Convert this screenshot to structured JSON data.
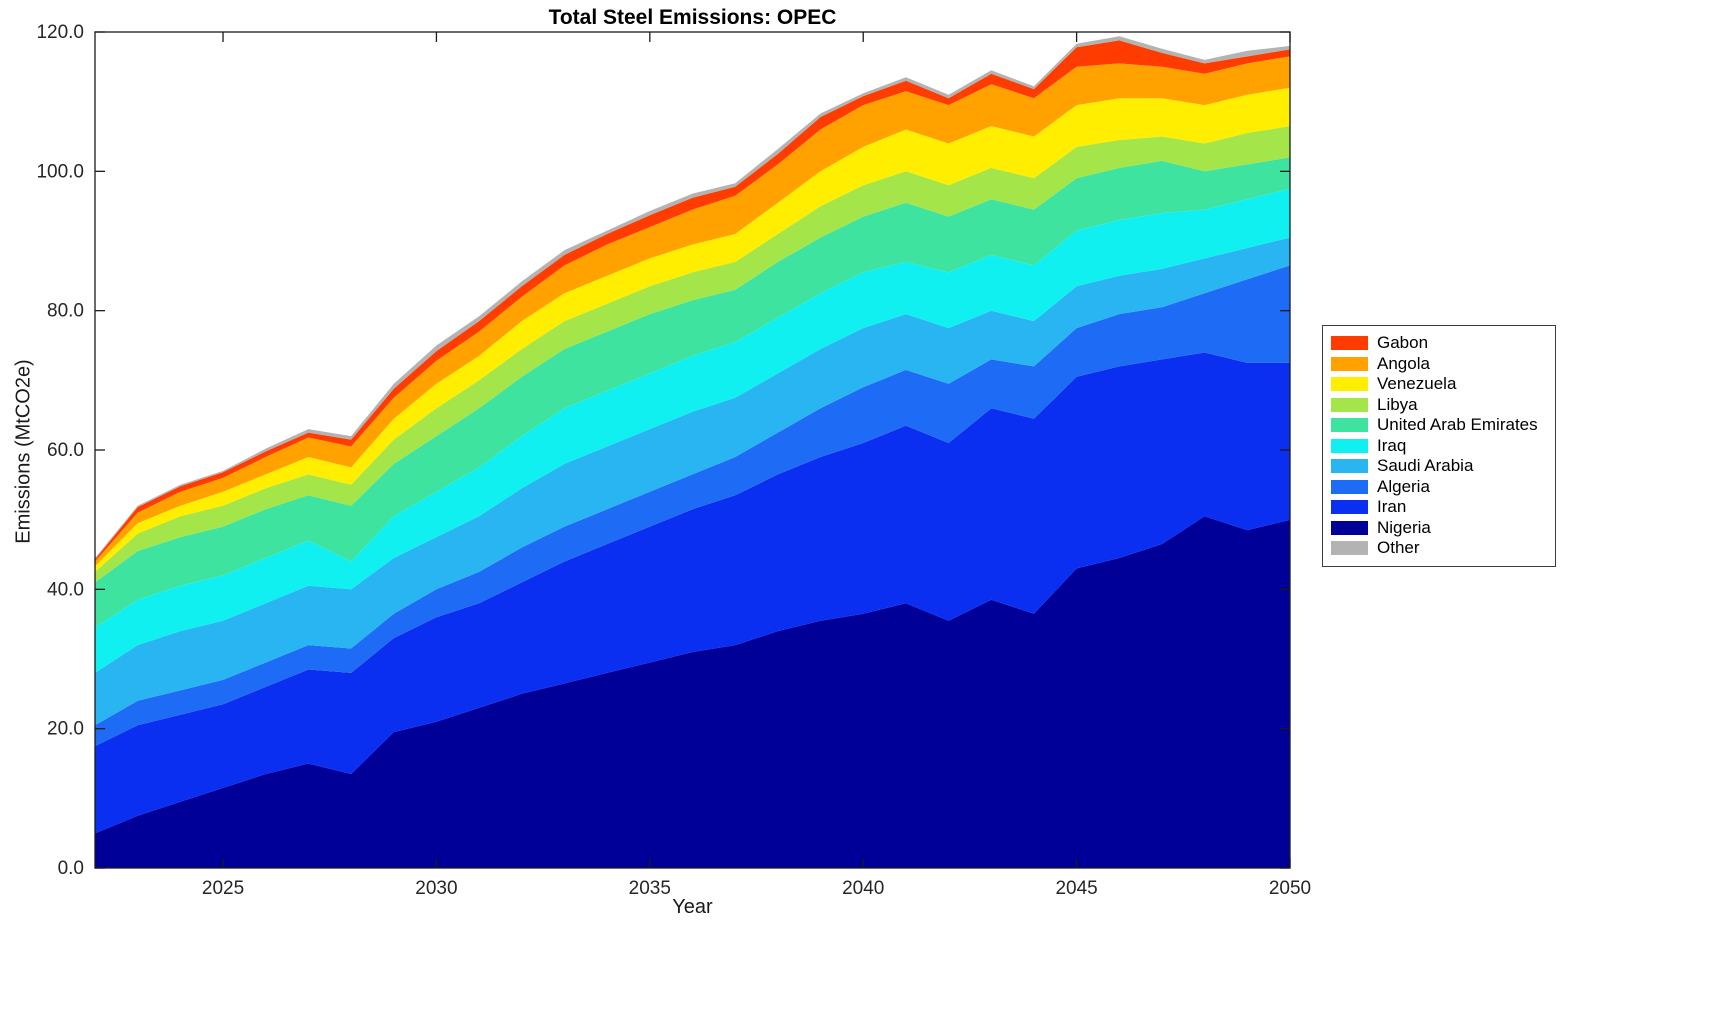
{
  "figure": {
    "title": "Total Steel Emissions: OPEC",
    "xlabel": "Year",
    "ylabel": "Emissions (MtCO2e)"
  },
  "chart_data": {
    "type": "area",
    "stacked": true,
    "title": "Total Steel Emissions: OPEC",
    "xlabel": "Year",
    "ylabel": "Emissions (MtCO2e)",
    "x_range": [
      2022,
      2050
    ],
    "ylim": [
      0,
      120
    ],
    "grid": false,
    "legend_position": "right-outside",
    "x_ticks": [
      "2025",
      "2030",
      "2035",
      "2040",
      "2045",
      "2050"
    ],
    "x_tick_values": [
      2025,
      2030,
      2035,
      2040,
      2045,
      2050
    ],
    "y_ticks": [
      "0.0",
      "20.0",
      "40.0",
      "60.0",
      "80.0",
      "100.0",
      "120.0"
    ],
    "y_tick_values": [
      0,
      20,
      40,
      60,
      80,
      100,
      120
    ],
    "years": [
      2022,
      2023,
      2024,
      2025,
      2026,
      2027,
      2028,
      2029,
      2030,
      2031,
      2032,
      2033,
      2034,
      2035,
      2036,
      2037,
      2038,
      2039,
      2040,
      2041,
      2042,
      2043,
      2044,
      2045,
      2046,
      2047,
      2048,
      2049,
      2050
    ],
    "stack_order": "bottom-to-top",
    "series": [
      {
        "name": "Nigeria",
        "color": "#000099",
        "values": [
          5,
          7.5,
          9.5,
          11.5,
          13.5,
          15,
          13.5,
          19.5,
          21,
          23,
          25,
          26.5,
          28,
          29.5,
          31,
          32,
          34,
          35.5,
          36.5,
          38,
          35.5,
          38.5,
          36.5,
          43,
          44.5,
          46.5,
          50.5,
          48.5,
          50
        ]
      },
      {
        "name": "Iran",
        "color": "#0b2ff0",
        "values": [
          12.5,
          13,
          12.5,
          12,
          12.5,
          13.5,
          14.5,
          13.5,
          15,
          15,
          16,
          17.5,
          18.5,
          19.5,
          20.5,
          21.5,
          22.5,
          23.5,
          24.5,
          25.5,
          25.5,
          27.5,
          28,
          27.5,
          27.5,
          26.5,
          23.5,
          24,
          22.5
        ]
      },
      {
        "name": "Algeria",
        "color": "#1e6bf5",
        "values": [
          3,
          3.5,
          3.5,
          3.5,
          3.5,
          3.5,
          3.5,
          3.5,
          4,
          4.5,
          5,
          5,
          5,
          5,
          5,
          5.5,
          6,
          7,
          8,
          8,
          8.5,
          7,
          7.5,
          7,
          7.5,
          7.5,
          8.5,
          12,
          14
        ]
      },
      {
        "name": "Saudi Arabia",
        "color": "#29b4f2",
        "values": [
          7.5,
          8,
          8.5,
          8.5,
          8.5,
          8.5,
          8.5,
          8,
          7.5,
          8,
          8.5,
          9,
          9,
          9,
          9,
          8.5,
          8.5,
          8.5,
          8.5,
          8,
          8,
          7,
          6.5,
          6,
          5.5,
          5.5,
          5,
          4.5,
          4
        ]
      },
      {
        "name": "Iraq",
        "color": "#10f0f0",
        "values": [
          6.5,
          6.5,
          6.5,
          6.5,
          6.5,
          6.5,
          4,
          6,
          6.5,
          7,
          7.5,
          8,
          8,
          8,
          8,
          8,
          8,
          8,
          8,
          7.5,
          8,
          8,
          8,
          8,
          8,
          8,
          7,
          7,
          7
        ]
      },
      {
        "name": "United Arab Emirates",
        "color": "#3fe3a0",
        "values": [
          6.5,
          7,
          7,
          7,
          7,
          6.5,
          8,
          7.5,
          8,
          8.5,
          8.5,
          8.5,
          8.5,
          8.5,
          8,
          7.5,
          8,
          8,
          8,
          8.5,
          8,
          8,
          8,
          7.5,
          7.5,
          7.5,
          5.5,
          5,
          4.5
        ]
      },
      {
        "name": "Libya",
        "color": "#a4e64a",
        "values": [
          1.5,
          2.5,
          3,
          3,
          3,
          3,
          3,
          3.5,
          4,
          4,
          4,
          4,
          4,
          4,
          4,
          4,
          4,
          4.5,
          4.5,
          4.5,
          4.5,
          4.5,
          4.5,
          4.5,
          4,
          3.5,
          4,
          4.5,
          4.5
        ]
      },
      {
        "name": "Venezuela",
        "color": "#ffee00",
        "values": [
          0.8,
          1.5,
          1.5,
          2,
          2,
          2.5,
          2.5,
          3,
          3.5,
          3.5,
          4,
          4,
          4,
          4,
          4,
          4,
          4.5,
          5,
          5.5,
          6,
          6,
          6,
          6,
          6,
          6,
          5.5,
          5.5,
          5.5,
          5.5
        ]
      },
      {
        "name": "Angola",
        "color": "#ffa200",
        "values": [
          0.7,
          1.5,
          2,
          2,
          2.5,
          2.8,
          3,
          3,
          3.3,
          3.5,
          3.5,
          4,
          4.5,
          4.5,
          5,
          5.5,
          5.5,
          6,
          6,
          5.5,
          5.5,
          6,
          5.5,
          5.5,
          5,
          4.5,
          4.5,
          4.5,
          4.5
        ]
      },
      {
        "name": "Gabon",
        "color": "#ff3c00",
        "values": [
          0.3,
          0.8,
          0.8,
          0.8,
          0.8,
          0.7,
          1,
          1.3,
          1.4,
          1.5,
          1.5,
          1.5,
          1.5,
          1.7,
          1.7,
          1.3,
          1.5,
          1.8,
          1.3,
          1.5,
          1,
          1.5,
          1.3,
          2.8,
          3.3,
          2,
          1.5,
          1,
          1
        ]
      },
      {
        "name": "Other",
        "color": "#b3b3b3",
        "values": [
          0.2,
          0.2,
          0.2,
          0.2,
          0.4,
          0.5,
          0.5,
          0.7,
          0.8,
          0.7,
          0.7,
          0.7,
          0.5,
          0.6,
          0.6,
          0.5,
          0.7,
          0.5,
          0.4,
          0.5,
          0.5,
          0.5,
          0.4,
          0.5,
          0.6,
          0.6,
          0.5,
          0.8,
          0.5
        ]
      }
    ],
    "legend_order": [
      "Gabon",
      "Angola",
      "Venezuela",
      "Libya",
      "United Arab Emirates",
      "Iraq",
      "Saudi Arabia",
      "Algeria",
      "Iran",
      "Nigeria",
      "Other"
    ]
  }
}
